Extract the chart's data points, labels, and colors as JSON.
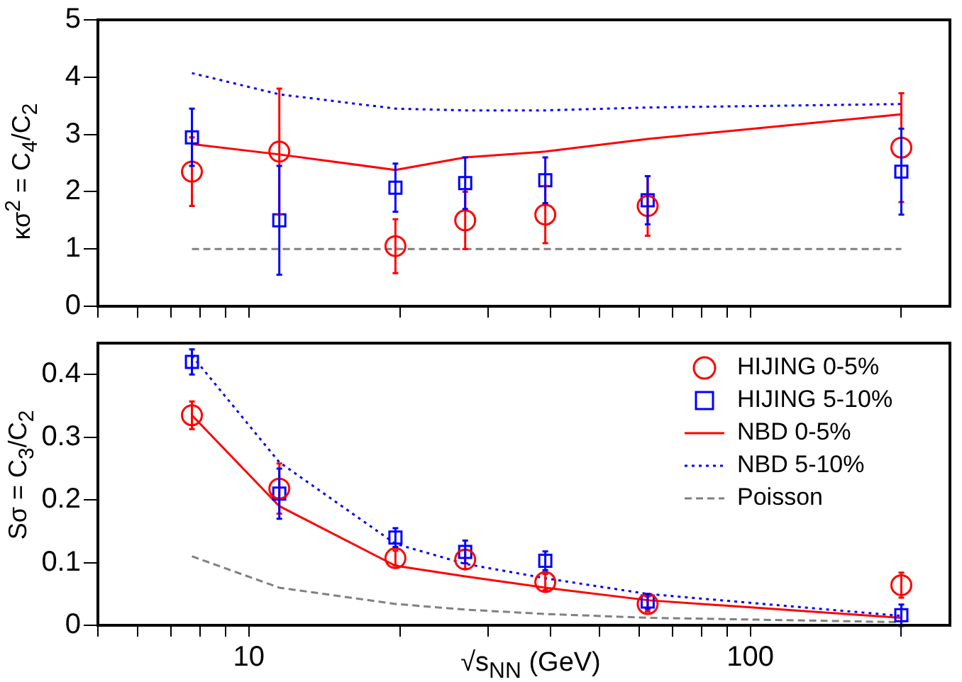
{
  "chart_data": [
    {
      "type": "scatter",
      "ylabel": "κσ$^{2}$ = C$_{4}$/C$_{2}$",
      "log": "x",
      "tick_labels": "y",
      "grid": false,
      "xlim": [
        5,
        250
      ],
      "xticks": [
        {
          "value": 5,
          "label": null
        },
        {
          "value": 6,
          "label": null
        },
        {
          "value": 7,
          "label": null
        },
        {
          "value": 8,
          "label": null
        },
        {
          "value": 9,
          "label": null
        },
        {
          "value": 10,
          "label": null
        },
        {
          "value": 20,
          "label": null
        },
        {
          "value": 30,
          "label": null
        },
        {
          "value": 40,
          "label": null
        },
        {
          "value": 50,
          "label": null
        },
        {
          "value": 60,
          "label": null
        },
        {
          "value": 70,
          "label": null
        },
        {
          "value": 80,
          "label": null
        },
        {
          "value": 90,
          "label": null
        },
        {
          "value": 100,
          "label": null
        },
        {
          "value": 200,
          "label": null
        }
      ],
      "ylim": [
        0,
        5
      ],
      "yticks": [
        0,
        1,
        2,
        3,
        4,
        5
      ],
      "x": [
        7.7,
        11.5,
        19.6,
        27,
        39,
        62.4,
        200
      ],
      "series": [
        {
          "marker": "circle",
          "color": "#ff0000",
          "values": [
            2.35,
            2.7,
            1.05,
            1.5,
            1.6,
            1.75,
            2.77
          ],
          "errors": [
            0.6,
            1.1,
            0.47,
            0.5,
            0.5,
            0.52,
            0.95
          ]
        },
        {
          "marker": "square",
          "color": "#0000ff",
          "values": [
            2.95,
            1.5,
            2.07,
            2.15,
            2.2,
            1.85,
            2.35
          ],
          "errors": [
            0.5,
            0.95,
            0.42,
            0.45,
            0.4,
            0.42,
            0.75
          ]
        },
        {
          "type": "line",
          "line_style": "solid",
          "color": "#ff0000",
          "values": [
            2.83,
            2.65,
            2.38,
            2.6,
            2.7,
            2.92,
            3.35
          ]
        },
        {
          "type": "line",
          "line_style": "dotted",
          "color": "#0000ff",
          "values": [
            4.07,
            3.7,
            3.45,
            3.42,
            3.42,
            3.47,
            3.53
          ]
        },
        {
          "type": "line",
          "line_style": "dashed",
          "color": "#808080",
          "values": [
            1,
            1,
            1,
            1,
            1,
            1,
            1
          ]
        }
      ]
    },
    {
      "type": "scatter",
      "ylabel": "Sσ = C$_{3}$/C$_{2}$",
      "xlabel": "√s$_{NN}$ (GeV)",
      "log": "x",
      "grid": false,
      "legend": "top right",
      "xlim": [
        5,
        250
      ],
      "xticks": [
        {
          "value": 5,
          "label": null
        },
        {
          "value": 6,
          "label": null
        },
        {
          "value": 7,
          "label": null
        },
        {
          "value": 8,
          "label": null
        },
        {
          "value": 9,
          "label": null
        },
        10,
        {
          "value": 20,
          "label": null
        },
        {
          "value": 30,
          "label": null
        },
        {
          "value": 40,
          "label": null
        },
        {
          "value": 50,
          "label": null
        },
        {
          "value": 60,
          "label": null
        },
        {
          "value": 70,
          "label": null
        },
        {
          "value": 80,
          "label": null
        },
        {
          "value": 90,
          "label": null
        },
        100,
        {
          "value": 200,
          "label": null
        }
      ],
      "ylim": [
        0,
        0.45
      ],
      "yticks": [
        0,
        0.1,
        0.2,
        0.3,
        0.4
      ],
      "x": [
        7.7,
        11.5,
        19.6,
        27,
        39,
        62.4,
        200
      ],
      "series": [
        {
          "name": "HIJING 0-5%",
          "marker": "circle",
          "color": "#ff0000",
          "values": [
            0.335,
            0.218,
            0.107,
            0.105,
            0.069,
            0.034,
            0.064
          ],
          "errors": [
            0.022,
            0.04,
            0.012,
            0.015,
            0.013,
            0.012,
            0.02
          ]
        },
        {
          "name": "HIJING 5-10%",
          "marker": "square",
          "color": "#0000ff",
          "values": [
            0.42,
            0.21,
            0.14,
            0.117,
            0.103,
            0.038,
            0.016
          ],
          "errors": [
            0.02,
            0.04,
            0.015,
            0.018,
            0.015,
            0.012,
            0.017
          ]
        },
        {
          "type": "line",
          "name": "NBD 0-5%",
          "line_style": "solid",
          "color": "#ff0000",
          "values": [
            0.335,
            0.19,
            0.095,
            0.078,
            0.06,
            0.04,
            0.012
          ]
        },
        {
          "type": "line",
          "name": "NBD 5-10%",
          "line_style": "dotted",
          "color": "#0000ff",
          "values": [
            0.43,
            0.26,
            0.13,
            0.098,
            0.075,
            0.05,
            0.015
          ]
        },
        {
          "type": "line",
          "name": "Poisson",
          "line_style": "dashed",
          "color": "#808080",
          "values": [
            0.11,
            0.06,
            0.034,
            0.025,
            0.018,
            0.012,
            0.005
          ]
        }
      ]
    }
  ]
}
